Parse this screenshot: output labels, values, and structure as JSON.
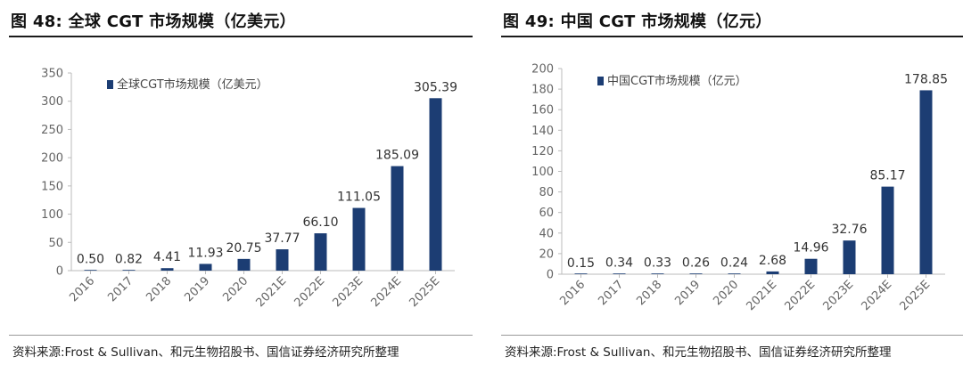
{
  "left": {
    "title": "图 48:  全球 CGT 市场规模（亿美元）",
    "source": "资料来源:Frost & Sullivan、和元生物招股书、国信证券经济研究所整理",
    "chart_data": {
      "type": "bar",
      "categories": [
        "2016",
        "2017",
        "2018",
        "2019",
        "2020",
        "2021E",
        "2022E",
        "2023E",
        "2024E",
        "2025E"
      ],
      "series": [
        {
          "name": "全球CGT市场规模（亿美元）",
          "values": [
            0.5,
            0.82,
            4.41,
            11.93,
            20.75,
            37.77,
            66.1,
            111.05,
            185.09,
            305.39
          ]
        }
      ],
      "labels": [
        "0.50",
        "0.82",
        "4.41",
        "11.93",
        "20.75",
        "37.77",
        "66.10",
        "111.05",
        "185.09",
        "305.39"
      ],
      "yticks": [
        0,
        50,
        100,
        150,
        200,
        250,
        300,
        350
      ],
      "ylim": [
        0,
        350
      ],
      "grid": false,
      "legend_position": "top-left",
      "bar_color": "#1c3d73"
    }
  },
  "right": {
    "title": "图 49:  中国 CGT 市场规模（亿元）",
    "source": "资料来源:Frost & Sullivan、和元生物招股书、国信证券经济研究所整理",
    "chart_data": {
      "type": "bar",
      "categories": [
        "2016",
        "2017",
        "2018",
        "2019",
        "2020",
        "2021E",
        "2022E",
        "2023E",
        "2024E",
        "2025E"
      ],
      "series": [
        {
          "name": "中国CGT市场规模（亿元）",
          "values": [
            0.15,
            0.34,
            0.33,
            0.26,
            0.24,
            2.68,
            14.96,
            32.76,
            85.17,
            178.85
          ]
        }
      ],
      "labels": [
        "0.15",
        "0.34",
        "0.33",
        "0.26",
        "0.24",
        "2.68",
        "14.96",
        "32.76",
        "85.17",
        "178.85"
      ],
      "yticks": [
        0,
        20,
        40,
        60,
        80,
        100,
        120,
        140,
        160,
        180,
        200
      ],
      "ylim": [
        0,
        200
      ],
      "grid": false,
      "legend_position": "top-left",
      "bar_color": "#1c3d73"
    }
  }
}
